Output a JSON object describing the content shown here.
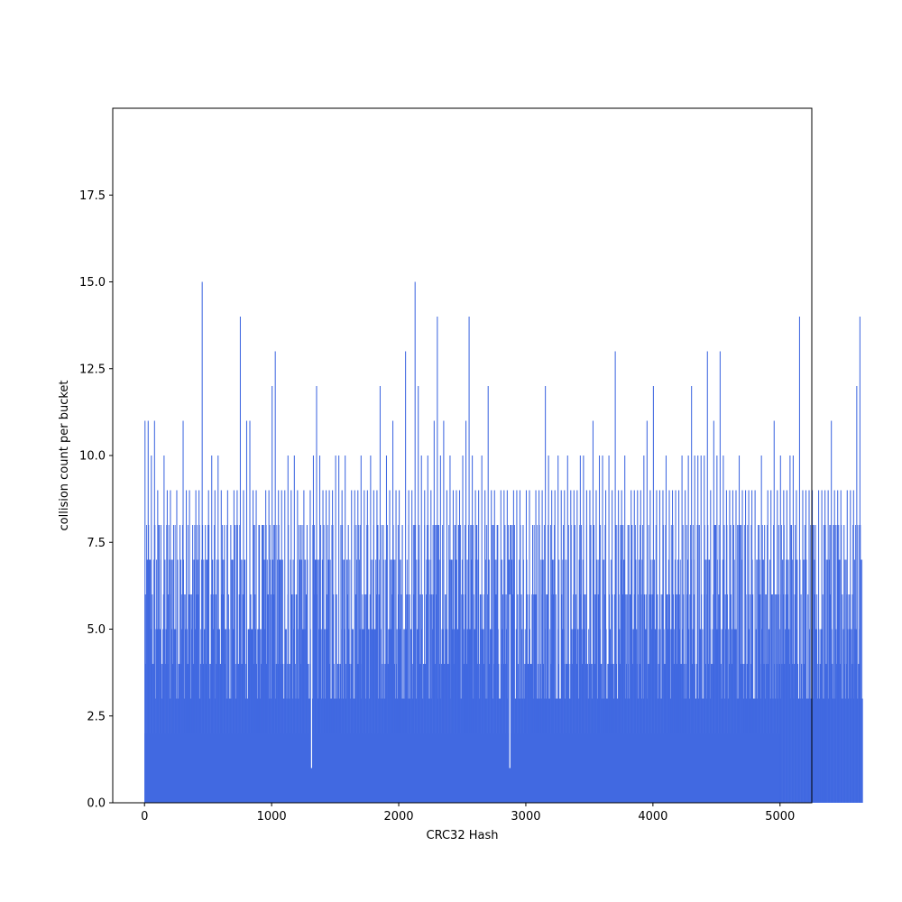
{
  "chart_data": {
    "type": "bar",
    "title": "",
    "xlabel": "CRC32 Hash",
    "ylabel": "collision count per bucket",
    "xlim": [
      -250,
      5250
    ],
    "ylim": [
      0,
      20
    ],
    "x_ticks": [
      0,
      1000,
      2000,
      3000,
      4000,
      5000
    ],
    "y_ticks": [
      0.0,
      2.5,
      5.0,
      7.5,
      10.0,
      12.5,
      15.0,
      17.5
    ],
    "x_tick_labels": [
      "0",
      "1000",
      "2000",
      "3000",
      "4000",
      "5000"
    ],
    "y_tick_labels": [
      "0.0",
      "2.5",
      "5.0",
      "7.5",
      "10.0",
      "12.5",
      "15.0",
      "17.5"
    ],
    "bucket_count": 5000,
    "bar_color": "#4169e1",
    "grid": false,
    "legend": "none",
    "series": [
      {
        "bucket_start": 0,
        "bucket_step": 25,
        "values": [
          11,
          11,
          10,
          11,
          9,
          8,
          10,
          9,
          9,
          8,
          9,
          8,
          11,
          9,
          9,
          8,
          9,
          9,
          15,
          8,
          9,
          10,
          9,
          10,
          9,
          8,
          9,
          8,
          9,
          9,
          14,
          9,
          11,
          11,
          9,
          9,
          8,
          8,
          9,
          9,
          12,
          13,
          9,
          9,
          9,
          10,
          9,
          10,
          9,
          8,
          9,
          8,
          9,
          10,
          12,
          10,
          9,
          9,
          9,
          9,
          10,
          10,
          9,
          10,
          8,
          9,
          9,
          9,
          10,
          9,
          9,
          10,
          9,
          9,
          12,
          8,
          10,
          9,
          11,
          9,
          9,
          8,
          13,
          9,
          9,
          15,
          12,
          10,
          9,
          10,
          9,
          11,
          14,
          10,
          11,
          9,
          10,
          9,
          9,
          9,
          10,
          11,
          14,
          10,
          9,
          9,
          10,
          9,
          12,
          9,
          9,
          8,
          9,
          9,
          9,
          8,
          9,
          9,
          9,
          8,
          9,
          9,
          8,
          9,
          9,
          9,
          12,
          10,
          9,
          9,
          10,
          9,
          9,
          10,
          9,
          9,
          9,
          10,
          10,
          9,
          9,
          11,
          9,
          10,
          10,
          9,
          10,
          9,
          13,
          9,
          9,
          10,
          8,
          9,
          9,
          9,
          9,
          10,
          11,
          9,
          12,
          9,
          9,
          9,
          10,
          9,
          9,
          9,
          9,
          10,
          9,
          10,
          12,
          10,
          10,
          10,
          10,
          13,
          9,
          11,
          10,
          13,
          10,
          9,
          9,
          9,
          9,
          10,
          9,
          9,
          9,
          9,
          9,
          8,
          10,
          8,
          9,
          9,
          11,
          9,
          10,
          9,
          9,
          10,
          10,
          9,
          14,
          9,
          9,
          9,
          9,
          8,
          9,
          9,
          9,
          9,
          11,
          9,
          9,
          9,
          8,
          9,
          9,
          9,
          12,
          14
        ]
      }
    ],
    "min_dips": [
      {
        "x": 1310,
        "value": 1
      },
      {
        "x": 2870,
        "value": 1
      }
    ]
  }
}
